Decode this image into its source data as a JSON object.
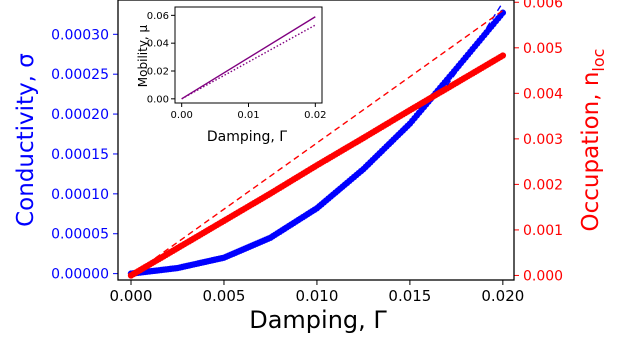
{
  "chart_data": {
    "type": "scatter",
    "main": {
      "x": [
        0.0,
        0.0025,
        0.005,
        0.0075,
        0.01,
        0.0125,
        0.015,
        0.0175,
        0.02
      ],
      "series": [
        {
          "axis": "left",
          "color": "#0000ff",
          "marker": "circle",
          "y": [
            0.0,
            7e-06,
            2e-05,
            4.5e-05,
            8.2e-05,
            0.000131,
            0.000188,
            0.000257,
            0.000327
          ]
        },
        {
          "axis": "right",
          "color": "#ff0000",
          "marker": "circle",
          "y": [
            0.0,
            0.0006,
            0.0012,
            0.0018,
            0.00242,
            0.00302,
            0.00363,
            0.00423,
            0.00483
          ]
        }
      ],
      "reference_lines": [
        {
          "axis": "left",
          "color": "#0000ff",
          "style": "dashed",
          "x": [
            0.017,
            0.0185,
            0.02
          ],
          "y": [
            0.000236,
            0.000285,
            0.00034
          ]
        },
        {
          "axis": "right",
          "color": "#ff0000",
          "style": "dashed",
          "x": [
            0.0,
            0.02
          ],
          "y": [
            0.0,
            0.00582
          ]
        }
      ],
      "xlim": [
        -0.0007,
        0.0206
      ],
      "ylim_left": [
        -8e-06,
        0.000343
      ],
      "ylim_right": [
        -0.0001,
        0.00605
      ],
      "xlabel": "Damping, Γ",
      "ylabel_left": "Conductivity, σ",
      "ylabel_right": "Occupation, n",
      "ylabel_right_sub": "loc",
      "xticks": [
        "0.000",
        "0.005",
        "0.010",
        "0.015",
        "0.020"
      ],
      "xtick_values": [
        0.0,
        0.005,
        0.01,
        0.015,
        0.02
      ],
      "yticks_left": [
        "0.00000",
        "0.00005",
        "0.00010",
        "0.00015",
        "0.00020",
        "0.00025",
        "0.00030"
      ],
      "ytick_values_left": [
        0.0,
        5e-05,
        0.0001,
        0.00015,
        0.0002,
        0.00025,
        0.0003
      ],
      "yticks_right": [
        "0.000",
        "0.001",
        "0.002",
        "0.003",
        "0.004",
        "0.005",
        "0.006"
      ],
      "ytick_values_right": [
        0.0,
        0.001,
        0.002,
        0.003,
        0.004,
        0.005,
        0.006
      ],
      "left_color": "#0000ff",
      "right_color": "#ff0000"
    },
    "inset": {
      "type": "line",
      "x": [
        0.0,
        0.02
      ],
      "series": [
        {
          "style": "solid",
          "color": "#800080",
          "y": [
            0.0,
            0.059
          ]
        },
        {
          "style": "dotted",
          "color": "#800080",
          "y": [
            0.0,
            0.053
          ]
        }
      ],
      "xlim": [
        -0.001,
        0.021
      ],
      "ylim": [
        -0.003,
        0.066
      ],
      "xlabel": "Damping, Γ",
      "ylabel": "Mobility, μ",
      "xticks": [
        "0.00",
        "0.01",
        "0.02"
      ],
      "xtick_values": [
        0.0,
        0.01,
        0.02
      ],
      "yticks": [
        "0.00",
        "0.02",
        "0.04",
        "0.06"
      ],
      "ytick_values": [
        0.0,
        0.02,
        0.04,
        0.06
      ]
    }
  }
}
